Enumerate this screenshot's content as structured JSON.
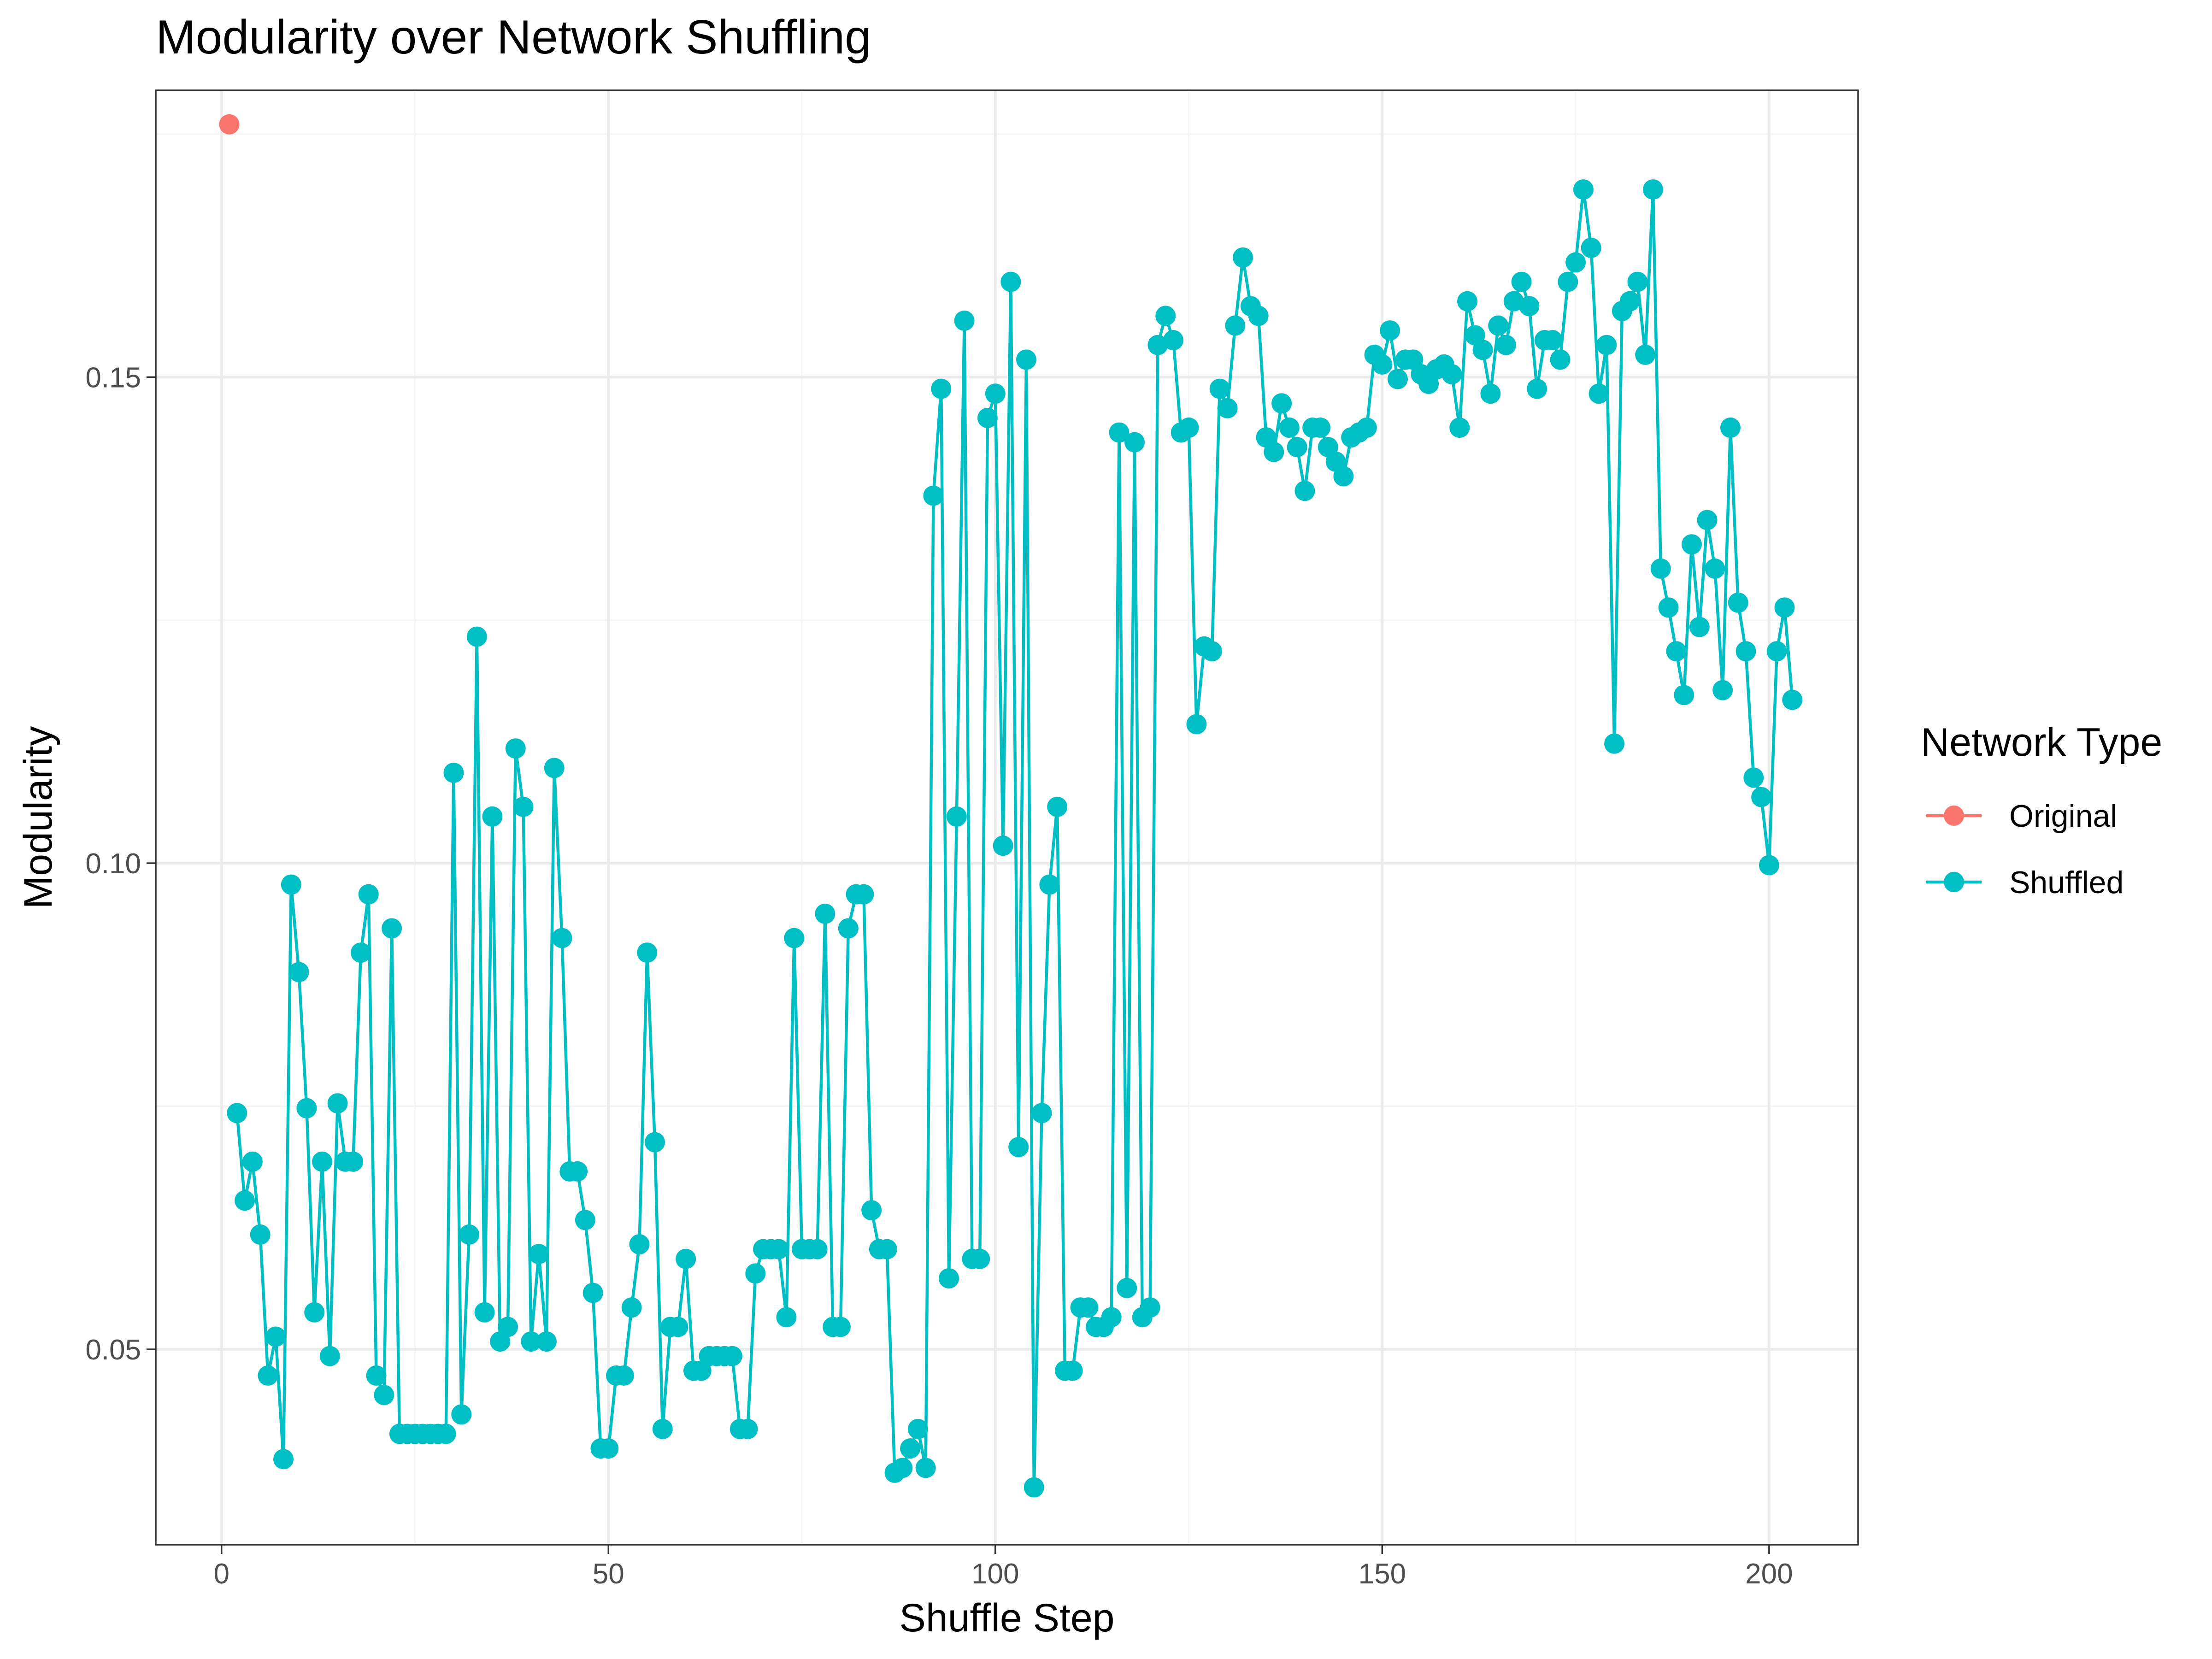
{
  "chart_data": {
    "type": "line",
    "title": "Modularity over Network Shuffling",
    "xlabel": "Shuffle Step",
    "ylabel": "Modularity",
    "xlim": [
      -8.5,
      211.5
    ],
    "ylim": [
      0.0299,
      0.1795
    ],
    "x_ticks": [
      0,
      50,
      100,
      150,
      200
    ],
    "x_tick_labels": [
      "0",
      "50",
      "100",
      "150",
      "200"
    ],
    "y_ticks": [
      0.05,
      0.1,
      0.15
    ],
    "y_tick_labels": [
      "0.05",
      "0.10",
      "0.15"
    ],
    "grid": true,
    "legend": {
      "title": "Network Type",
      "position": "right",
      "entries": [
        "Original",
        "Shuffled"
      ]
    },
    "series": [
      {
        "name": "Original",
        "color": "#F8766D",
        "x": [
          1
        ],
        "y": [
          0.176
        ]
      },
      {
        "name": "Shuffled",
        "color": "#00BFC4",
        "x_start": 2,
        "y": [
          0.0743,
          0.0653,
          0.0693,
          0.0618,
          0.0473,
          0.0513,
          0.0387,
          0.0978,
          0.0888,
          0.0748,
          0.0538,
          0.0693,
          0.0493,
          0.0753,
          0.0693,
          0.0693,
          0.0908,
          0.0968,
          0.0473,
          0.0453,
          0.0933,
          0.0413,
          0.0413,
          0.0413,
          0.0413,
          0.0413,
          0.0413,
          0.0413,
          0.1093,
          0.0433,
          0.0618,
          0.1233,
          0.0538,
          0.1048,
          0.0508,
          0.0523,
          0.1118,
          0.1058,
          0.0508,
          0.0598,
          0.0508,
          0.1098,
          0.0923,
          0.0683,
          0.0683,
          0.0633,
          0.0558,
          0.0398,
          0.0398,
          0.0473,
          0.0473,
          0.0543,
          0.0608,
          0.0908,
          0.0713,
          0.0418,
          0.0523,
          0.0523,
          0.0593,
          0.0478,
          0.0478,
          0.0493,
          0.0493,
          0.0493,
          0.0493,
          0.0418,
          0.0418,
          0.0578,
          0.0603,
          0.0603,
          0.0603,
          0.0533,
          0.0923,
          0.0603,
          0.0603,
          0.0603,
          0.0948,
          0.0523,
          0.0523,
          0.0933,
          0.0968,
          0.0968,
          0.0643,
          0.0603,
          0.0603,
          0.0373,
          0.0378,
          0.0398,
          0.0418,
          0.0378,
          0.1378,
          0.1488,
          0.0573,
          0.1048,
          0.1558,
          0.0593,
          0.0593,
          0.1458,
          0.1483,
          0.1018,
          0.1598,
          0.0708,
          0.1518,
          0.0358,
          0.0743,
          0.0978,
          0.1058,
          0.0478,
          0.0478,
          0.0543,
          0.0543,
          0.0523,
          0.0523,
          0.0533,
          0.1443,
          0.0563,
          0.1433,
          0.0533,
          0.0543,
          0.1533,
          0.1563,
          0.1538,
          0.1443,
          0.1448,
          0.1143,
          0.1223,
          0.1218,
          0.1488,
          0.1468,
          0.1553,
          0.1623,
          0.1573,
          0.1563,
          0.1438,
          0.1423,
          0.1473,
          0.1448,
          0.1428,
          0.1383,
          0.1448,
          0.1448,
          0.1428,
          0.1413,
          0.1398,
          0.1438,
          0.1443,
          0.1448,
          0.1523,
          0.1513,
          0.1548,
          0.1498,
          0.1518,
          0.1518,
          0.1503,
          0.1493,
          0.1508,
          0.1513,
          0.1503,
          0.1448,
          0.1578,
          0.1543,
          0.1528,
          0.1483,
          0.1553,
          0.1533,
          0.1578,
          0.1598,
          0.1573,
          0.1488,
          0.1538,
          0.1538,
          0.1518,
          0.1598,
          0.1618,
          0.1693,
          0.1633,
          0.1483,
          0.1533,
          0.1123,
          0.1568,
          0.1578,
          0.1598,
          0.1523,
          0.1693,
          0.1303,
          0.1263,
          0.1218,
          0.1173,
          0.1328,
          0.1243,
          0.1353,
          0.1303,
          0.1178,
          0.1448,
          0.1268,
          0.1218,
          0.1088,
          0.1068,
          0.0998,
          0.1218,
          0.1263,
          0.1168
        ]
      }
    ]
  }
}
